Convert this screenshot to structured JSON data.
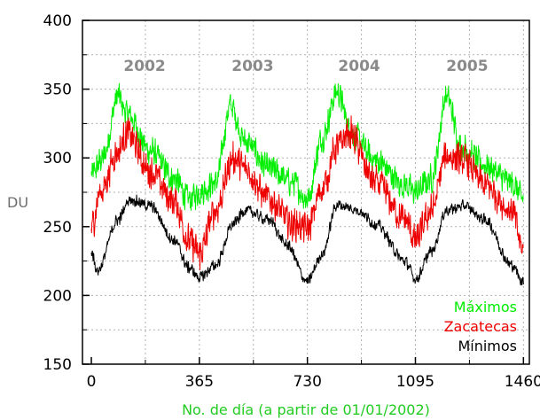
{
  "chart_data": {
    "type": "line",
    "xlabel": "No. de día (a partir de 01/01/2002)",
    "ylabel": "DU",
    "xlim": [
      -30,
      1480
    ],
    "ylim": [
      150,
      400
    ],
    "x_ticks": [
      0,
      365,
      730,
      1095,
      1460
    ],
    "y_ticks": [
      150,
      200,
      250,
      300,
      350,
      400
    ],
    "grid": true,
    "legend_position": "bottom-right",
    "annotations": [
      {
        "text": "2002",
        "x": 180
      },
      {
        "text": "2003",
        "x": 545
      },
      {
        "text": "2004",
        "x": 905
      },
      {
        "text": "2005",
        "x": 1270
      }
    ],
    "series": [
      {
        "name": "Máximos",
        "color": "#00ee00",
        "noise": 12,
        "anchors": [
          [
            0,
            288
          ],
          [
            40,
            300
          ],
          [
            90,
            345
          ],
          [
            120,
            332
          ],
          [
            200,
            305
          ],
          [
            280,
            285
          ],
          [
            330,
            270
          ],
          [
            365,
            275
          ],
          [
            420,
            282
          ],
          [
            470,
            338
          ],
          [
            520,
            312
          ],
          [
            600,
            292
          ],
          [
            680,
            282
          ],
          [
            730,
            270
          ],
          [
            780,
            315
          ],
          [
            830,
            348
          ],
          [
            880,
            318
          ],
          [
            960,
            298
          ],
          [
            1060,
            280
          ],
          [
            1095,
            275
          ],
          [
            1150,
            285
          ],
          [
            1200,
            345
          ],
          [
            1250,
            308
          ],
          [
            1330,
            295
          ],
          [
            1420,
            282
          ],
          [
            1460,
            270
          ]
        ]
      },
      {
        "name": "Zacatecas",
        "color": "#ee0000",
        "noise": 14,
        "anchors": [
          [
            0,
            250
          ],
          [
            30,
            275
          ],
          [
            90,
            305
          ],
          [
            120,
            318
          ],
          [
            200,
            290
          ],
          [
            280,
            268
          ],
          [
            330,
            240
          ],
          [
            365,
            230
          ],
          [
            420,
            262
          ],
          [
            480,
            300
          ],
          [
            520,
            292
          ],
          [
            600,
            270
          ],
          [
            680,
            252
          ],
          [
            730,
            248
          ],
          [
            780,
            278
          ],
          [
            830,
            308
          ],
          [
            870,
            318
          ],
          [
            960,
            282
          ],
          [
            1060,
            255
          ],
          [
            1095,
            240
          ],
          [
            1150,
            262
          ],
          [
            1200,
            302
          ],
          [
            1260,
            298
          ],
          [
            1330,
            280
          ],
          [
            1420,
            262
          ],
          [
            1460,
            232
          ]
        ]
      },
      {
        "name": "Mínimos",
        "color": "#000000",
        "noise": 5,
        "anchors": [
          [
            0,
            232
          ],
          [
            20,
            218
          ],
          [
            90,
            255
          ],
          [
            130,
            270
          ],
          [
            200,
            265
          ],
          [
            280,
            240
          ],
          [
            330,
            220
          ],
          [
            365,
            213
          ],
          [
            420,
            222
          ],
          [
            480,
            252
          ],
          [
            520,
            262
          ],
          [
            600,
            255
          ],
          [
            660,
            237
          ],
          [
            730,
            210
          ],
          [
            780,
            230
          ],
          [
            830,
            266
          ],
          [
            900,
            262
          ],
          [
            960,
            252
          ],
          [
            1060,
            225
          ],
          [
            1095,
            212
          ],
          [
            1150,
            232
          ],
          [
            1200,
            262
          ],
          [
            1260,
            265
          ],
          [
            1330,
            255
          ],
          [
            1420,
            222
          ],
          [
            1460,
            210
          ]
        ]
      }
    ]
  }
}
